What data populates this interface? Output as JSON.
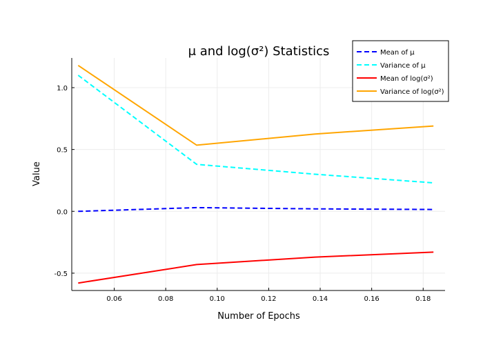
{
  "chart_data": {
    "type": "line",
    "title": "μ and log(σ²) Statistics",
    "xlabel": "Number of Epochs",
    "ylabel": "Value",
    "xlim": [
      0.0435,
      0.1885
    ],
    "ylim": [
      -0.64,
      1.24
    ],
    "xticks": [
      0.06,
      0.08,
      0.1,
      0.12,
      0.14,
      0.16,
      0.18
    ],
    "xtick_labels": [
      "0.06",
      "0.08",
      "0.10",
      "0.12",
      "0.14",
      "0.16",
      "0.18"
    ],
    "yticks": [
      -0.5,
      0.0,
      0.5,
      1.0
    ],
    "ytick_labels": [
      "-0.5",
      "0.0",
      "0.5",
      "1.0"
    ],
    "x": [
      0.046,
      0.092,
      0.138,
      0.184
    ],
    "grid": true,
    "legend_position": "top-right",
    "series": [
      {
        "name": "Mean of μ",
        "values": [
          0.0,
          0.03,
          0.02,
          0.015
        ],
        "color": "#0000ff",
        "style": "dashed"
      },
      {
        "name": "Variance of μ",
        "values": [
          1.1,
          0.38,
          0.3,
          0.23
        ],
        "color": "#00ffff",
        "style": "dashed"
      },
      {
        "name": "Mean of log(σ²)",
        "values": [
          -0.58,
          -0.43,
          -0.37,
          -0.33
        ],
        "color": "#ff0000",
        "style": "solid"
      },
      {
        "name": "Variance of log(σ²)",
        "values": [
          1.18,
          0.535,
          0.625,
          0.69
        ],
        "color": "#ffa500",
        "style": "solid"
      }
    ]
  }
}
